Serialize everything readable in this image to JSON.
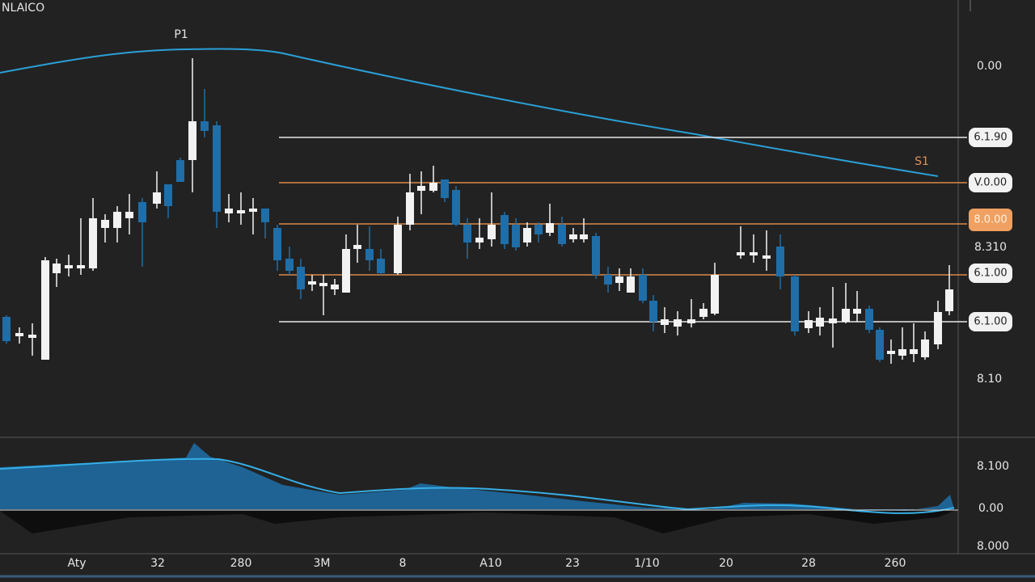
{
  "header": {
    "title": "NLAICO"
  },
  "annotations": {
    "peak": "P1",
    "support": "S1"
  },
  "price_labels": [
    "0.00",
    "6.1.90",
    "V.0.00",
    "8.310",
    "6.1.00",
    "6.1.00",
    "8.10"
  ],
  "level_tag": "8.0.00",
  "indicator_labels": [
    "8.100",
    "0.00",
    "8.000"
  ],
  "time_labels": [
    "Aty",
    "32",
    "280",
    "3M",
    "8",
    "A10",
    "23",
    "1/10",
    "20",
    "28",
    "260"
  ]
}
